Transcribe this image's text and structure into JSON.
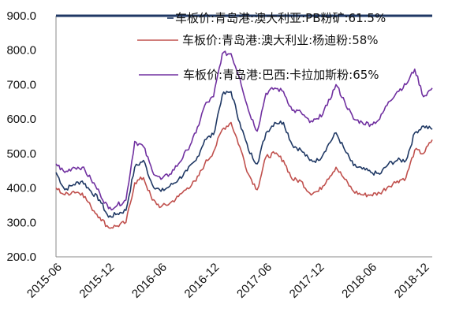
{
  "chart_data": {
    "type": "line",
    "title": "",
    "xlabel": "",
    "ylabel": "",
    "ylim": [
      200,
      900
    ],
    "yticks": [
      "900.0",
      "800.0",
      "700.0",
      "600.0",
      "500.0",
      "400.0",
      "300.0",
      "200.0"
    ],
    "xticks": [
      "2015-06",
      "2015-12",
      "2016-06",
      "2016-12",
      "2017-06",
      "2017-12",
      "2018-06",
      "2018-12"
    ],
    "grid": false,
    "legend_position": "top-right",
    "x_dates": [
      "2015-06",
      "2015-07",
      "2015-08",
      "2015-09",
      "2015-10",
      "2015-11",
      "2015-12",
      "2016-01",
      "2016-02",
      "2016-03",
      "2016-04",
      "2016-05",
      "2016-06",
      "2016-07",
      "2016-08",
      "2016-09",
      "2016-10",
      "2016-11",
      "2016-12",
      "2017-01",
      "2017-02",
      "2017-03",
      "2017-04",
      "2017-05",
      "2017-06",
      "2017-07",
      "2017-08",
      "2017-09",
      "2017-10",
      "2017-11",
      "2017-12",
      "2018-01",
      "2018-02",
      "2018-03",
      "2018-04",
      "2018-05",
      "2018-06",
      "2018-07",
      "2018-08",
      "2018-09",
      "2018-10",
      "2018-11",
      "2018-12",
      "2019-01"
    ],
    "series": [
      {
        "name": "车板价:青岛港:澳大利亚:PB粉矿:61.5%",
        "color": "#1f3864",
        "values": [
          445,
          395,
          410,
          420,
          390,
          365,
          315,
          325,
          335,
          460,
          480,
          410,
          390,
          405,
          425,
          450,
          480,
          540,
          555,
          670,
          680,
          590,
          510,
          470,
          560,
          590,
          590,
          525,
          510,
          480,
          480,
          520,
          560,
          510,
          465,
          455,
          445,
          440,
          470,
          480,
          480,
          560,
          580,
          570
        ]
      },
      {
        "name": "车板价:青岛港:澳大利业:杨迪粉:58%",
        "color": "#c0504d",
        "values": [
          400,
          380,
          390,
          385,
          345,
          315,
          285,
          290,
          300,
          415,
          430,
          365,
          345,
          355,
          375,
          400,
          420,
          470,
          505,
          570,
          590,
          520,
          440,
          395,
          490,
          500,
          480,
          425,
          420,
          385,
          390,
          425,
          460,
          425,
          390,
          380,
          380,
          385,
          405,
          420,
          430,
          510,
          500,
          540
        ]
      },
      {
        "name": "车板价:青岛港:巴西:卡拉加斯粉:65%",
        "color": "#7030a0",
        "values": [
          470,
          445,
          460,
          460,
          425,
          385,
          340,
          350,
          365,
          535,
          520,
          450,
          425,
          440,
          470,
          510,
          560,
          640,
          665,
          790,
          790,
          720,
          625,
          565,
          675,
          690,
          680,
          625,
          620,
          590,
          600,
          640,
          700,
          650,
          600,
          590,
          585,
          600,
          650,
          680,
          700,
          745,
          665,
          690
        ]
      }
    ]
  }
}
